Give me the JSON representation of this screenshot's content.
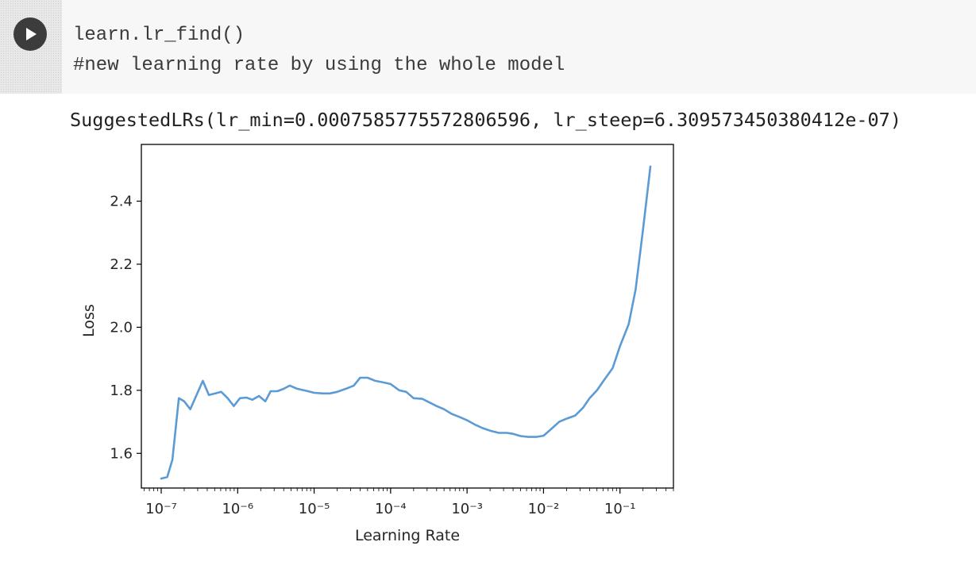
{
  "cell": {
    "run_icon": "play-icon",
    "code_lines": [
      "learn.lr_find()",
      "#new learning rate by using the whole model"
    ]
  },
  "output": {
    "text": "SuggestedLRs(lr_min=0.0007585775572806596, lr_steep=6.309573450380412e-07)"
  },
  "chart_data": {
    "type": "line",
    "title": "",
    "xlabel": "Learning Rate",
    "ylabel": "Loss",
    "xscale": "log",
    "xlim": [
      5.5e-08,
      0.5
    ],
    "ylim": [
      1.49,
      2.58
    ],
    "grid": false,
    "line_color": "#5b9bd5",
    "x_ticks": [
      {
        "value": 1e-07,
        "label": "10⁻⁷"
      },
      {
        "value": 1e-06,
        "label": "10⁻⁶"
      },
      {
        "value": 1e-05,
        "label": "10⁻⁵"
      },
      {
        "value": 0.0001,
        "label": "10⁻⁴"
      },
      {
        "value": 0.001,
        "label": "10⁻³"
      },
      {
        "value": 0.01,
        "label": "10⁻²"
      },
      {
        "value": 0.1,
        "label": "10⁻¹"
      }
    ],
    "y_ticks": [
      {
        "value": 1.6,
        "label": "1.6"
      },
      {
        "value": 1.8,
        "label": "1.8"
      },
      {
        "value": 2.0,
        "label": "2.0"
      },
      {
        "value": 2.2,
        "label": "2.2"
      },
      {
        "value": 2.4,
        "label": "2.4"
      }
    ],
    "series": [
      {
        "x": [
          1e-07,
          1.2e-07,
          1.4e-07,
          1.7e-07,
          2e-07,
          2.4e-07,
          2.9e-07,
          3.5e-07,
          4.2e-07,
          5.1e-07,
          6.1e-07,
          7.4e-07,
          8.9e-07,
          1.07e-06,
          1.3e-06,
          1.56e-06,
          1.9e-06,
          2.3e-06,
          2.7e-06,
          3.3e-06,
          4e-06,
          4.8e-06,
          6e-06,
          8e-06,
          1e-05,
          1.3e-05,
          1.6e-05,
          2e-05,
          2.6e-05,
          3.3e-05,
          4e-05,
          5e-05,
          6.3e-05,
          8e-05,
          0.0001,
          0.00013,
          0.00016,
          0.0002,
          0.00026,
          0.00033,
          0.0004,
          0.0005,
          0.00063,
          0.0008,
          0.001,
          0.0013,
          0.0016,
          0.002,
          0.0026,
          0.0033,
          0.004,
          0.005,
          0.0063,
          0.008,
          0.01,
          0.013,
          0.016,
          0.02,
          0.026,
          0.033,
          0.04,
          0.05,
          0.063,
          0.08,
          0.1,
          0.13,
          0.16,
          0.2,
          0.25
        ],
        "y": [
          1.52,
          1.525,
          1.58,
          1.775,
          1.765,
          1.74,
          1.785,
          1.83,
          1.785,
          1.79,
          1.795,
          1.775,
          1.75,
          1.775,
          1.777,
          1.77,
          1.782,
          1.765,
          1.797,
          1.797,
          1.805,
          1.815,
          1.805,
          1.798,
          1.792,
          1.79,
          1.79,
          1.795,
          1.805,
          1.815,
          1.84,
          1.84,
          1.83,
          1.825,
          1.82,
          1.8,
          1.795,
          1.775,
          1.773,
          1.76,
          1.75,
          1.74,
          1.725,
          1.715,
          1.705,
          1.69,
          1.68,
          1.672,
          1.665,
          1.665,
          1.662,
          1.655,
          1.652,
          1.652,
          1.656,
          1.68,
          1.7,
          1.71,
          1.72,
          1.745,
          1.775,
          1.8,
          1.835,
          1.87,
          1.94,
          2.01,
          2.12,
          2.31,
          2.51
        ]
      }
    ]
  }
}
